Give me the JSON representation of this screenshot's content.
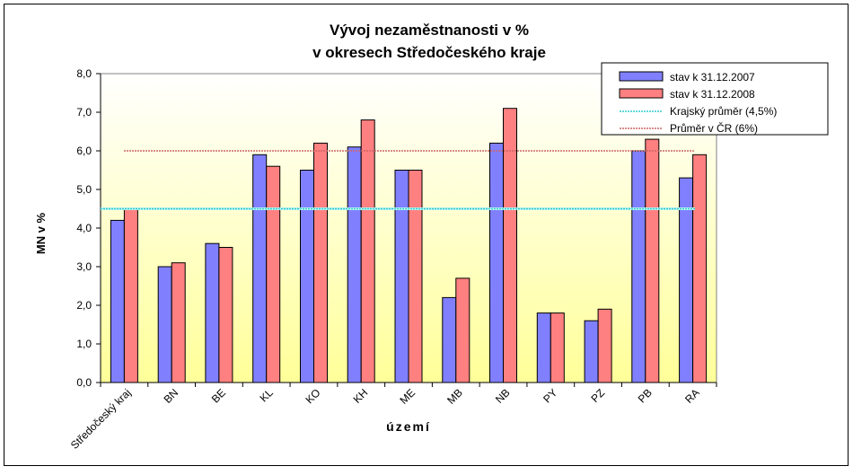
{
  "chart_data": {
    "type": "bar",
    "title": [
      "Vývoj nezaměstnanosti v %",
      "v okresech Středočeského kraje"
    ],
    "xlabel": "území",
    "ylabel": "MN v %",
    "ylim": [
      0,
      8
    ],
    "yticks": [
      "0,0",
      "1,0",
      "2,0",
      "3,0",
      "4,0",
      "5,0",
      "6,0",
      "7,0",
      "8,0"
    ],
    "categories": [
      "Středočeský kraj",
      "BN",
      "BE",
      "KL",
      "KO",
      "KH",
      "ME",
      "MB",
      "NB",
      "PY",
      "PZ",
      "PB",
      "RA"
    ],
    "series": [
      {
        "name": "stav  k 31.12.2007",
        "color": "#8080FF",
        "values": [
          4.2,
          3.0,
          3.6,
          5.9,
          5.5,
          6.1,
          5.5,
          2.2,
          6.2,
          1.8,
          1.6,
          6.0,
          5.3
        ]
      },
      {
        "name": "stav  k 31.12.2008",
        "color": "#FF8080",
        "values": [
          4.5,
          3.1,
          3.5,
          5.6,
          6.2,
          6.8,
          5.5,
          2.7,
          7.1,
          1.8,
          1.9,
          6.3,
          5.9
        ]
      }
    ],
    "reference_lines": [
      {
        "name": "Krajský průměr (4,5%)",
        "value": 4.5,
        "color": "#33CCCC",
        "style": "dotted"
      },
      {
        "name": "Průměr v ČR (6%)",
        "value": 6.0,
        "color": "#CC6666",
        "style": "dotted"
      }
    ],
    "grid": false,
    "legend_position": "top-right",
    "background": "yellow-gradient"
  }
}
